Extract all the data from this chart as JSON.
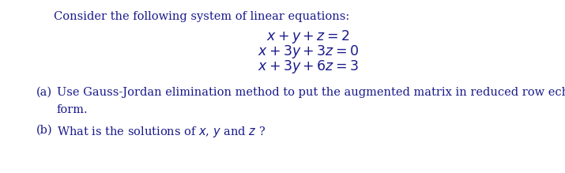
{
  "bg_color": "#ffffff",
  "intro_text": "Consider the following system of linear equations:",
  "eq1": "$x+y+z=2$",
  "eq2": "$x+3y+3z=0$",
  "eq3": "$x+3y+6z=3$",
  "part_a_label": "(a)",
  "part_a_line1": "Use Gauss-Jordan elimination method to put the augmented matrix in reduced row echelon",
  "part_a_line2": "form.",
  "part_b_label": "(b)",
  "part_b_text": "What is the solutions of $x$, $y$ and $z$ ?",
  "text_color": "#1a1a8c",
  "fontsize_intro": 10.5,
  "fontsize_eq": 12.5,
  "fontsize_part": 10.5
}
